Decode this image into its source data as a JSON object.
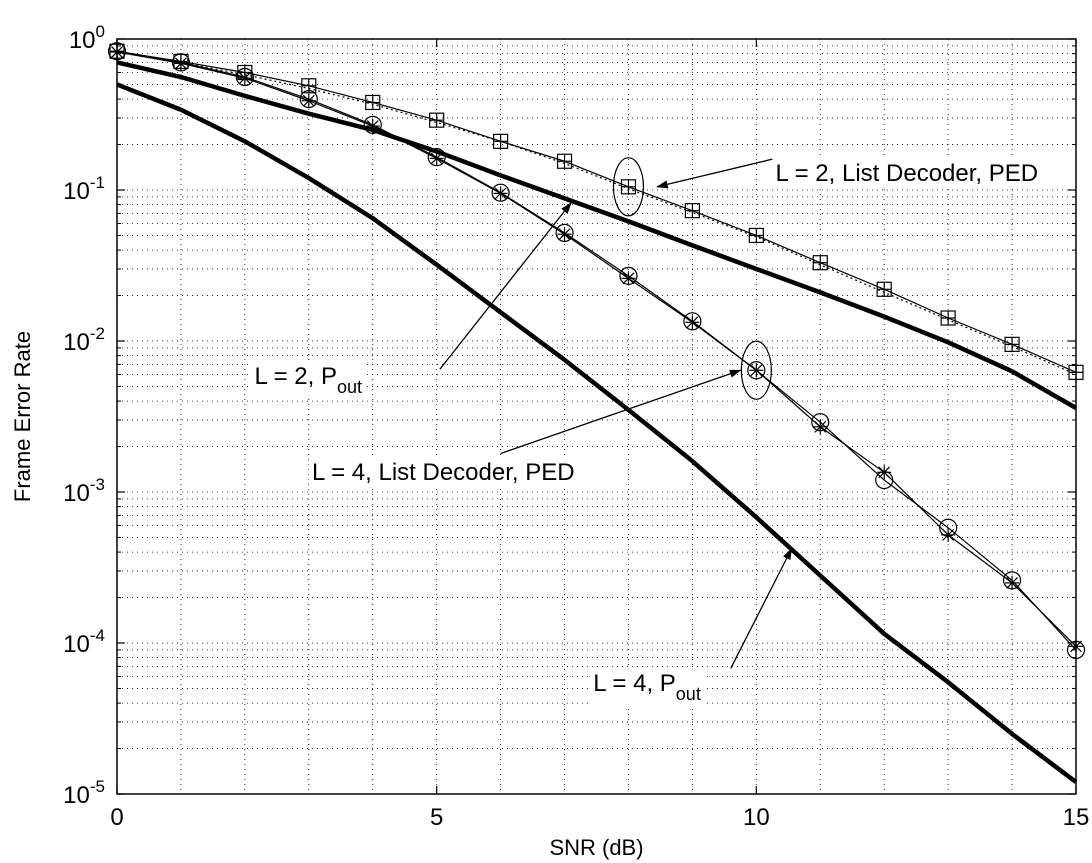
{
  "chart_data": {
    "type": "line",
    "xlabel": "SNR (dB)",
    "ylabel": "Frame Error Rate",
    "xlim": [
      0,
      15
    ],
    "ylim": [
      1e-05,
      1
    ],
    "y_scale": "log",
    "grid": true,
    "x_ticks": [
      "0",
      "5",
      "10",
      "15"
    ],
    "y_ticks": [
      {
        "base": "10",
        "exp": "0"
      },
      {
        "base": "10",
        "exp": "-1"
      },
      {
        "base": "10",
        "exp": "-2"
      },
      {
        "base": "10",
        "exp": "-3"
      },
      {
        "base": "10",
        "exp": "-4"
      },
      {
        "base": "10",
        "exp": "-5"
      }
    ],
    "series": [
      {
        "key": "pout2",
        "style": "thick",
        "x": [
          0,
          1,
          2,
          3,
          4,
          5,
          6,
          7,
          8,
          9,
          10,
          11,
          12,
          13,
          14,
          15
        ],
        "y": [
          0.7,
          0.56,
          0.42,
          0.32,
          0.25,
          0.18,
          0.125,
          0.088,
          0.062,
          0.043,
          0.03,
          0.021,
          0.0145,
          0.0098,
          0.0063,
          0.0036
        ]
      },
      {
        "key": "pout4",
        "style": "thick",
        "x": [
          0,
          1,
          2,
          3,
          4,
          5,
          6,
          7,
          8,
          9,
          10,
          11,
          12,
          13,
          14,
          15
        ],
        "y": [
          0.5,
          0.34,
          0.21,
          0.12,
          0.065,
          0.032,
          0.0155,
          0.0075,
          0.0035,
          0.0016,
          0.00068,
          0.00028,
          0.000115,
          5.5e-05,
          2.5e-05,
          1.2e-05
        ]
      },
      {
        "key": "list2_squares",
        "style": "thin-solid",
        "marker": "boxplus",
        "x": [
          0,
          1,
          2,
          3,
          4,
          5,
          6,
          7,
          8,
          9,
          10,
          11,
          12,
          13,
          14,
          15
        ],
        "y": [
          0.83,
          0.71,
          0.6,
          0.49,
          0.38,
          0.29,
          0.21,
          0.155,
          0.105,
          0.073,
          0.05,
          0.033,
          0.022,
          0.0142,
          0.0095,
          0.0062
        ]
      },
      {
        "key": "list2_plus",
        "style": "thin-dotted",
        "marker": "none",
        "x": [
          0,
          1,
          2,
          3,
          4,
          5,
          6,
          7,
          8,
          9,
          10,
          11,
          12,
          13,
          14,
          15
        ],
        "y": [
          0.82,
          0.7,
          0.58,
          0.47,
          0.37,
          0.28,
          0.21,
          0.15,
          0.102,
          0.071,
          0.049,
          0.032,
          0.021,
          0.0138,
          0.0092,
          0.006
        ]
      },
      {
        "key": "list4_circles",
        "style": "thin-solid",
        "marker": "circle",
        "x": [
          0,
          1,
          2,
          3,
          4,
          5,
          6,
          7,
          8,
          9,
          10,
          11,
          12,
          13,
          14,
          15
        ],
        "y": [
          0.83,
          0.7,
          0.56,
          0.4,
          0.27,
          0.165,
          0.096,
          0.052,
          0.027,
          0.0135,
          0.0064,
          0.0029,
          0.0012,
          0.00058,
          0.00026,
          9e-05
        ]
      },
      {
        "key": "list4_stars",
        "style": "thin-solid",
        "marker": "star",
        "x": [
          0,
          1,
          2,
          3,
          4,
          5,
          6,
          7,
          8,
          9,
          10,
          11,
          12,
          13,
          14,
          15
        ],
        "y": [
          0.82,
          0.69,
          0.55,
          0.39,
          0.265,
          0.162,
          0.095,
          0.051,
          0.026,
          0.0133,
          0.0064,
          0.0027,
          0.00135,
          0.00052,
          0.00025,
          9.5e-05
        ]
      }
    ],
    "annotations": [
      {
        "key": "list2",
        "text": "L = 2, List Decoder, PED",
        "sub": "",
        "tx": 10.3,
        "ty": 0.115,
        "arrow_from": [
          10.25,
          0.16
        ],
        "arrow_to": [
          8.45,
          0.105
        ],
        "ellipse": [
          8.0,
          0.105
        ]
      },
      {
        "key": "pout2",
        "text": "L = 2, P",
        "sub": "out",
        "tx": 2.15,
        "ty": 0.0052,
        "arrow_from": [
          5.05,
          0.0065
        ],
        "arrow_to": [
          7.1,
          0.082
        ]
      },
      {
        "key": "list4",
        "text": "L = 4, List Decoder, PED",
        "sub": "",
        "tx": 3.05,
        "ty": 0.0012,
        "arrow_from": [
          6.0,
          0.0018
        ],
        "arrow_to": [
          9.75,
          0.0064
        ],
        "ellipse": [
          10.0,
          0.0064
        ]
      },
      {
        "key": "pout4",
        "text": "L = 4, P",
        "sub": "out",
        "tx": 7.45,
        "ty": 4.8e-05,
        "arrow_from": [
          9.6,
          6.8e-05
        ],
        "arrow_to": [
          10.55,
          0.00042
        ]
      }
    ]
  }
}
